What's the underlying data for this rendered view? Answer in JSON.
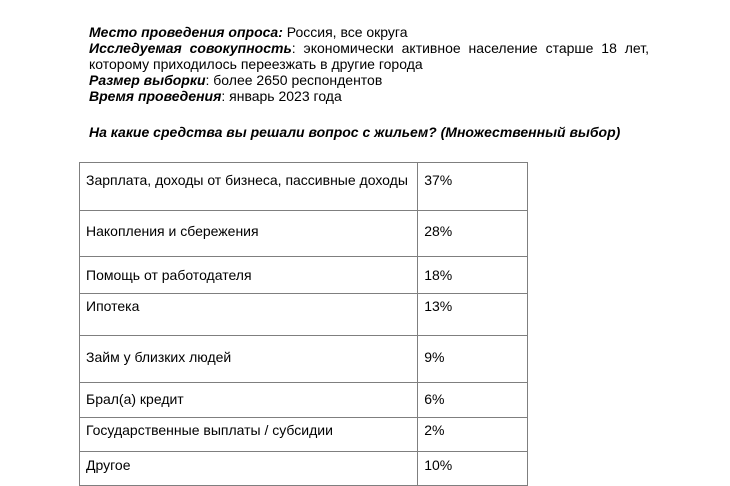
{
  "meta": {
    "location_label": "Место проведения опроса:",
    "location_value": " Россия, все округа",
    "population_label": "Исследуемая совокупность",
    "population_value": ": экономически активное население старше 18 лет, которому приходилось переезжать в другие города",
    "sample_label": "Размер выборки",
    "sample_value": ": более 2650 респондентов",
    "time_label": "Время проведения",
    "time_value": ": январь 2023 года"
  },
  "question": "На какие средства вы решали вопрос с жильем? (Множественный выбор)",
  "rows": [
    {
      "label": "Зарплата, доходы от бизнеса, пассивные доходы",
      "value": "37%"
    },
    {
      "label": "Накопления и сбережения",
      "value": "28%"
    },
    {
      "label": "Помощь от работодателя",
      "value": "18%"
    },
    {
      "label": "Ипотека",
      "value": "13%"
    },
    {
      "label": "Займ у близких людей",
      "value": "9%"
    },
    {
      "label": "Брал(а) кредит",
      "value": "6%"
    },
    {
      "label": "Государственные выплаты / субсидии",
      "value": "2%"
    },
    {
      "label": "Другое",
      "value": "10%"
    }
  ]
}
